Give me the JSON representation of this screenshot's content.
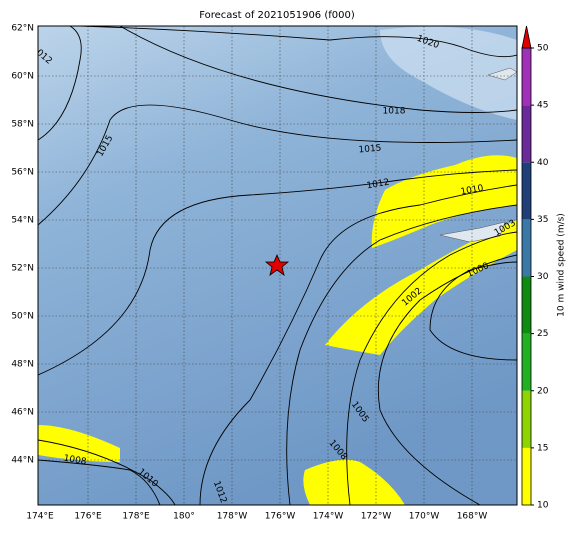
{
  "title": "Forecast of 2021051906 (f000)",
  "map": {
    "lat_labels": [
      "62°N",
      "60°N",
      "58°N",
      "56°N",
      "54°N",
      "52°N",
      "50°N",
      "48°N",
      "46°N",
      "44°N"
    ],
    "lon_labels": [
      "174°E",
      "176°E",
      "178°E",
      "180°",
      "178°W",
      "176°W",
      "174°W",
      "172°W",
      "170°W",
      "168°W"
    ],
    "contour_labels": [
      "1020",
      "1012",
      "1018",
      "1015",
      "1015",
      "1012",
      "1010",
      "1003",
      "1000",
      "1002",
      "1005",
      "1008",
      "1008",
      "1010",
      "1012"
    ]
  },
  "colorbar": {
    "label": "10 m wind speed (m/s)",
    "lim": [
      10,
      50
    ],
    "ticks": [
      10,
      15,
      20,
      25,
      30,
      35,
      40,
      45,
      50
    ],
    "colors": [
      "#ffff00",
      "#8fd400",
      "#22b022",
      "#108a10",
      "#3a78a8",
      "#203e78",
      "#6a2a9a",
      "#a030b8"
    ],
    "extend_color": "#e00000"
  }
}
